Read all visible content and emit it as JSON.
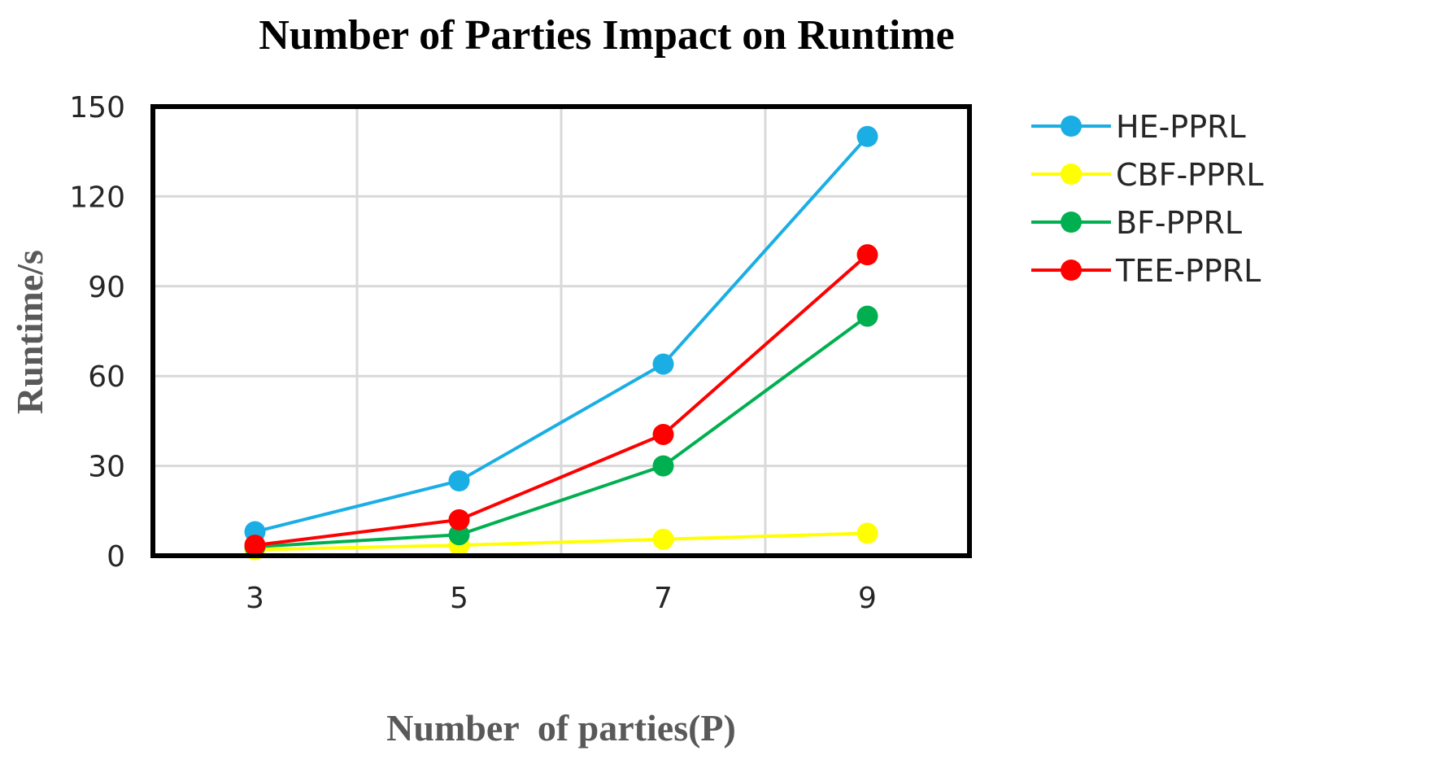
{
  "chart_data": {
    "type": "line",
    "title": "Number of Parties Impact on Runtime",
    "xlabel": "Number  of parties(P)",
    "ylabel": "Runtime/s",
    "x": [
      "3",
      "5",
      "7",
      "9"
    ],
    "ylim": [
      0,
      150
    ],
    "yticks": [
      "0",
      "30",
      "60",
      "90",
      "120",
      "150"
    ],
    "grid": true,
    "legend_position": "right",
    "series": [
      {
        "name": "HE-PPRL",
        "color": "#1aaee5",
        "values": [
          8,
          25,
          64,
          140
        ]
      },
      {
        "name": "CBF-PPRL",
        "color": "#ffff00",
        "values": [
          2,
          3.5,
          5.5,
          7.5
        ]
      },
      {
        "name": "BF-PPRL",
        "color": "#00b050",
        "values": [
          3,
          7,
          30,
          80
        ]
      },
      {
        "name": "TEE-PPRL",
        "color": "#ff0000",
        "values": [
          3.5,
          12,
          40.5,
          100.5
        ]
      }
    ]
  }
}
